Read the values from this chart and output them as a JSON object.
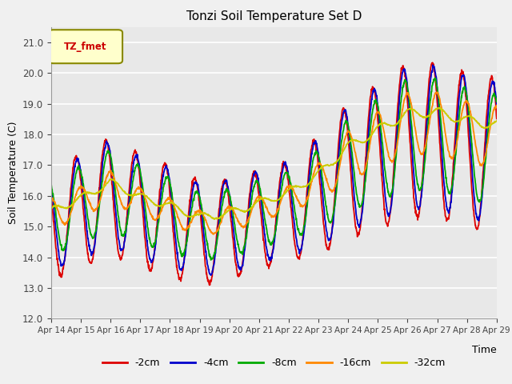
{
  "title": "Tonzi Soil Temperature Set D",
  "xlabel": "Time",
  "ylabel": "Soil Temperature (C)",
  "ylim": [
    12.0,
    21.5
  ],
  "yticks": [
    12.0,
    13.0,
    14.0,
    15.0,
    16.0,
    17.0,
    18.0,
    19.0,
    20.0,
    21.0
  ],
  "legend_label": "TZ_fmet",
  "series_labels": [
    "-2cm",
    "-4cm",
    "-8cm",
    "-16cm",
    "-32cm"
  ],
  "series_colors": [
    "#dd0000",
    "#0000cc",
    "#00aa00",
    "#ff8800",
    "#cccc00"
  ],
  "line_width": 1.3,
  "background_color": "#e8e8e8",
  "fig_background": "#f0f0f0",
  "xtick_labels": [
    "Apr 14",
    "Apr 15",
    "Apr 16",
    "Apr 17",
    "Apr 18",
    "Apr 19",
    "Apr 20",
    "Apr 21",
    "Apr 22",
    "Apr 23",
    "Apr 24",
    "Apr 25",
    "Apr 26",
    "Apr 27",
    "Apr 28",
    "Apr 29"
  ],
  "n_days": 15
}
